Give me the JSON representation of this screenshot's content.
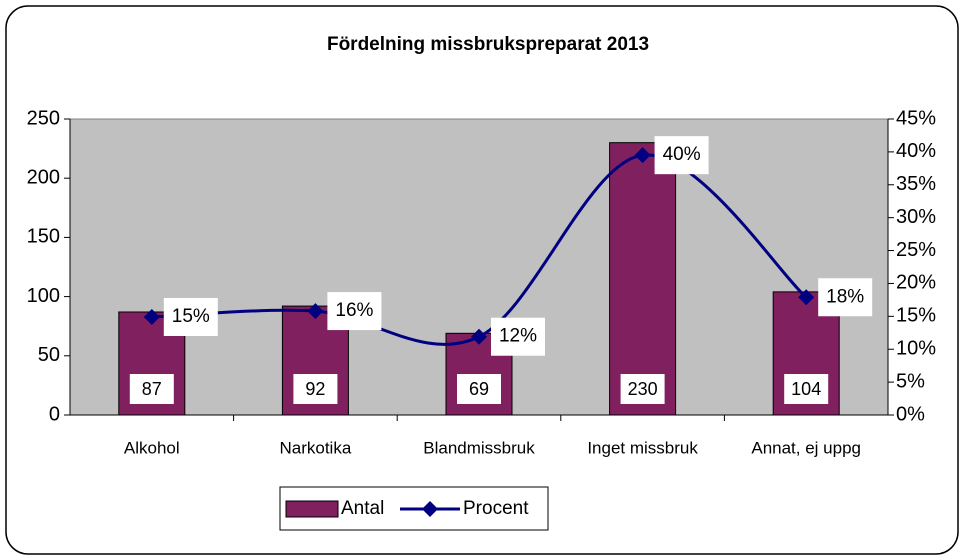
{
  "chart_data": {
    "type": "bar_line",
    "title": "Fördelning missbrukspreparat 2013",
    "categories": [
      "Alkohol",
      "Narkotika",
      "Blandmissbruk",
      "Inget missbruk",
      "Annat, ej uppg"
    ],
    "series": [
      {
        "name": "Antal",
        "color": "#80205f",
        "values": [
          87,
          92,
          69,
          230,
          104
        ]
      },
      {
        "name": "Procent",
        "color": "#000080",
        "axis": "y2",
        "values": [
          14.9,
          15.8,
          11.9,
          39.5,
          17.9
        ],
        "value_labels": [
          "15%",
          "16%",
          "12%",
          "40%",
          "18%"
        ]
      }
    ],
    "ylim": [
      0,
      250
    ],
    "yticks": [
      0,
      50,
      100,
      150,
      200,
      250
    ],
    "y2lim": [
      0,
      45
    ],
    "y2ticks": [
      {
        "value": 0,
        "label": "0%"
      },
      {
        "value": 5,
        "label": "5%"
      },
      {
        "value": 10,
        "label": "10%"
      },
      {
        "value": 15,
        "label": "15%"
      },
      {
        "value": 20,
        "label": "20%"
      },
      {
        "value": 25,
        "label": "25%"
      },
      {
        "value": 30,
        "label": "30%"
      },
      {
        "value": 35,
        "label": "35%"
      },
      {
        "value": 40,
        "label": "40%"
      },
      {
        "value": 45,
        "label": "45%"
      }
    ],
    "legend": "bottom"
  }
}
